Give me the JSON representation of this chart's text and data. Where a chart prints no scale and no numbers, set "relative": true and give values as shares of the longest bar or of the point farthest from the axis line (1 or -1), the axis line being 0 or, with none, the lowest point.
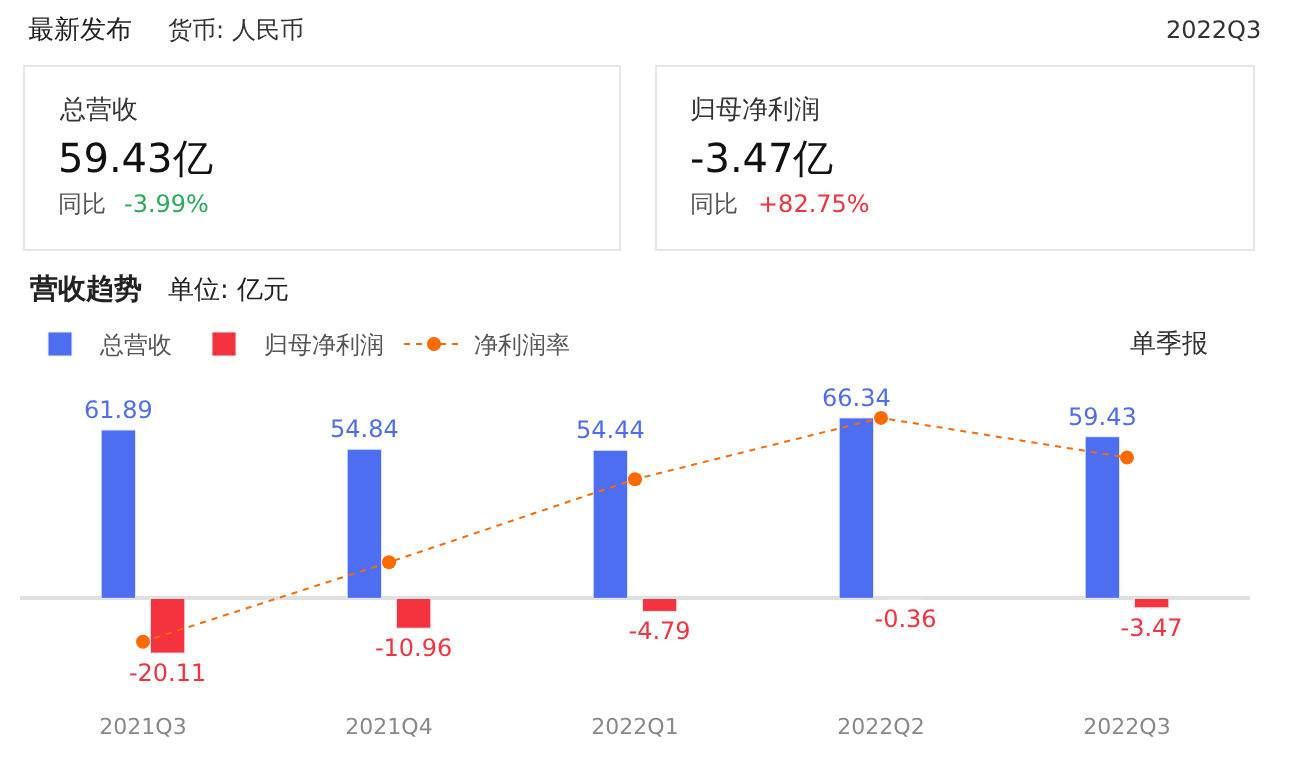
{
  "chart_data": [
    {
      "type": "bar",
      "title": "营收趋势",
      "subtitle": "单位: 亿元",
      "categories": [
        "2021Q3",
        "2021Q4",
        "2022Q1",
        "2022Q2",
        "2022Q3"
      ],
      "series": [
        {
          "name": "总营收",
          "color": "#4e6ef2",
          "values": [
            61.89,
            54.84,
            54.44,
            66.34,
            59.43
          ],
          "value_labels": [
            "61.89",
            "54.84",
            "54.44",
            "66.34",
            "59.43"
          ]
        },
        {
          "name": "归母净利润",
          "color": "#f5333f",
          "values": [
            -20.11,
            -10.96,
            -4.79,
            -0.36,
            -3.47
          ],
          "value_labels": [
            "-20.11",
            "-10.96",
            "-4.79",
            "-0.36",
            "-3.47"
          ]
        }
      ],
      "tick_labels": "x",
      "legend": "top left",
      "annotations": [
        "最新发布",
        "货币: 人民币",
        "2022Q3",
        "总营收",
        "59.43亿",
        "同比",
        "-3.99%",
        "归母净利润",
        "-3.47亿",
        "同比",
        "+82.75%",
        "单季报"
      ]
    },
    {
      "type": "line",
      "relative": true,
      "categories": [
        null,
        null,
        null,
        null,
        null
      ],
      "legend": "top left",
      "tick_labels": false,
      "series": [
        {
          "name": "净利润率",
          "color": "#ff6a00",
          "line_style": "dotted",
          "marker": "circle",
          "values": [
            -0.24,
            0.2,
            0.66,
            1,
            0.78
          ]
        }
      ]
    }
  ]
}
